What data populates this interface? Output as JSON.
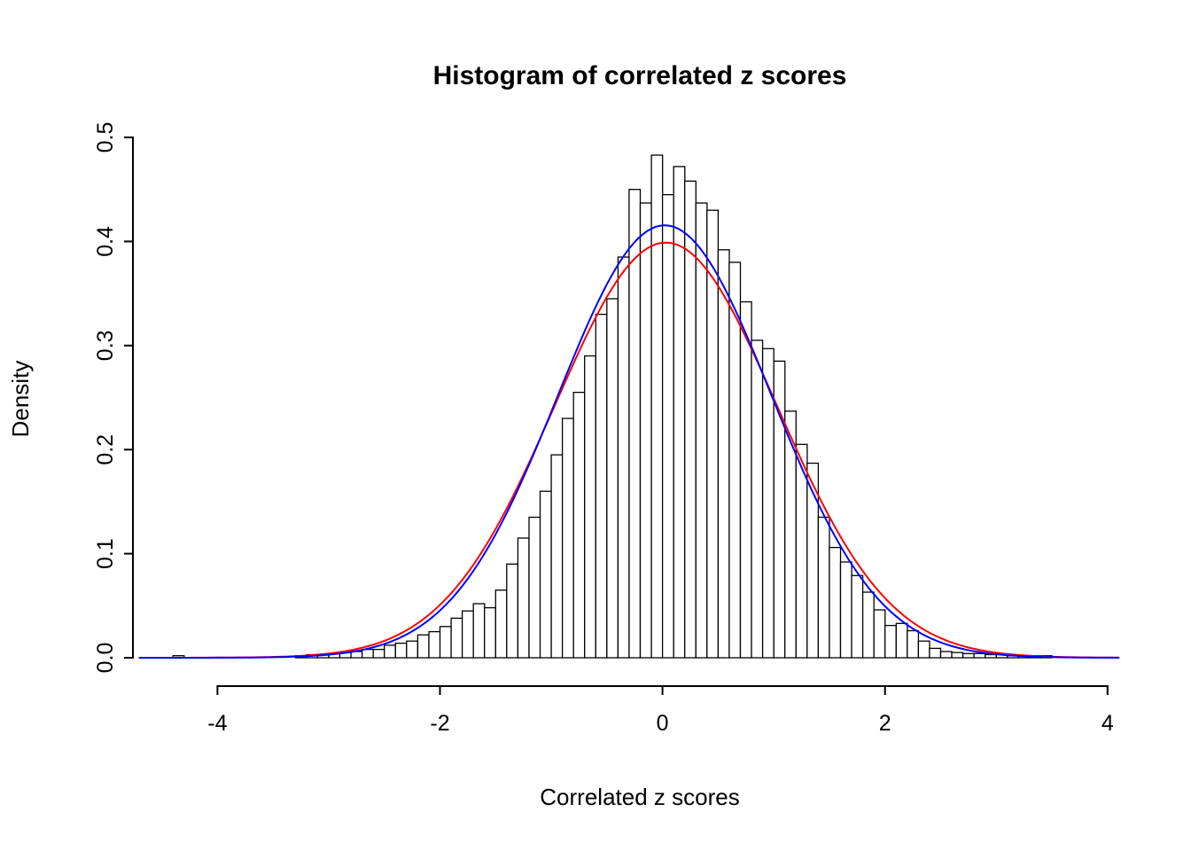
{
  "chart_data": {
    "type": "histogram",
    "title": "Histogram of correlated z scores",
    "xlabel": "Correlated z scores",
    "ylabel": "Density",
    "xlim": [
      -4.76,
      4.36
    ],
    "ylim": [
      0,
      0.5
    ],
    "grid": false,
    "legend": false,
    "x_ticks": {
      "values": [
        -4,
        -2,
        0,
        2,
        4
      ],
      "labels": [
        "-4",
        "-2",
        "0",
        "2",
        "4"
      ]
    },
    "y_ticks": {
      "values": [
        0,
        0.1,
        0.2,
        0.3,
        0.4,
        0.5
      ],
      "labels": [
        "0.0",
        "0.1",
        "0.2",
        "0.3",
        "0.4",
        "0.5"
      ]
    },
    "bin_width": 0.1,
    "bar_fill": "#FFFFFF",
    "bar_stroke": "#000000",
    "bins": [
      [
        -4.4,
        0.002
      ],
      [
        -3.3,
        0.002
      ],
      [
        -3.2,
        0.003
      ],
      [
        -3.1,
        0.003
      ],
      [
        -3.0,
        0.004
      ],
      [
        -2.9,
        0.005
      ],
      [
        -2.8,
        0.006
      ],
      [
        -2.7,
        0.008
      ],
      [
        -2.6,
        0.008
      ],
      [
        -2.5,
        0.012
      ],
      [
        -2.4,
        0.014
      ],
      [
        -2.3,
        0.016
      ],
      [
        -2.2,
        0.022
      ],
      [
        -2.1,
        0.025
      ],
      [
        -2.0,
        0.03
      ],
      [
        -1.9,
        0.038
      ],
      [
        -1.8,
        0.045
      ],
      [
        -1.7,
        0.052
      ],
      [
        -1.6,
        0.048
      ],
      [
        -1.5,
        0.065
      ],
      [
        -1.4,
        0.09
      ],
      [
        -1.3,
        0.115
      ],
      [
        -1.2,
        0.135
      ],
      [
        -1.1,
        0.16
      ],
      [
        -1.0,
        0.195
      ],
      [
        -0.9,
        0.23
      ],
      [
        -0.8,
        0.255
      ],
      [
        -0.7,
        0.29
      ],
      [
        -0.6,
        0.33
      ],
      [
        -0.5,
        0.345
      ],
      [
        -0.4,
        0.385
      ],
      [
        -0.3,
        0.45
      ],
      [
        -0.2,
        0.437
      ],
      [
        -0.1,
        0.483
      ],
      [
        0.0,
        0.445
      ],
      [
        0.1,
        0.472
      ],
      [
        0.2,
        0.458
      ],
      [
        0.3,
        0.437
      ],
      [
        0.4,
        0.43
      ],
      [
        0.5,
        0.392
      ],
      [
        0.6,
        0.38
      ],
      [
        0.7,
        0.342
      ],
      [
        0.8,
        0.305
      ],
      [
        0.9,
        0.297
      ],
      [
        1.0,
        0.285
      ],
      [
        1.1,
        0.237
      ],
      [
        1.2,
        0.205
      ],
      [
        1.3,
        0.187
      ],
      [
        1.4,
        0.135
      ],
      [
        1.5,
        0.106
      ],
      [
        1.6,
        0.092
      ],
      [
        1.7,
        0.079
      ],
      [
        1.8,
        0.063
      ],
      [
        1.9,
        0.046
      ],
      [
        2.0,
        0.031
      ],
      [
        2.1,
        0.033
      ],
      [
        2.2,
        0.026
      ],
      [
        2.3,
        0.016
      ],
      [
        2.4,
        0.009
      ],
      [
        2.5,
        0.006
      ],
      [
        2.6,
        0.005
      ],
      [
        2.7,
        0.004
      ],
      [
        2.8,
        0.004
      ],
      [
        2.9,
        0.003
      ],
      [
        3.0,
        0.003
      ],
      [
        3.1,
        0.002
      ],
      [
        3.2,
        0.002
      ],
      [
        3.3,
        0.002
      ],
      [
        3.4,
        0.002
      ]
    ],
    "curves": [
      {
        "name": "red-normal-density",
        "color": "#FF0000",
        "mean": 0.03,
        "sd": 1.0,
        "peak_density": 0.399,
        "x_range": [
          -4.7,
          4.1
        ]
      },
      {
        "name": "blue-fitted-density",
        "color": "#0000FF",
        "mean": 0.02,
        "sd": 0.96,
        "peak_density": 0.4156,
        "x_range": [
          -4.7,
          4.12
        ]
      }
    ]
  }
}
